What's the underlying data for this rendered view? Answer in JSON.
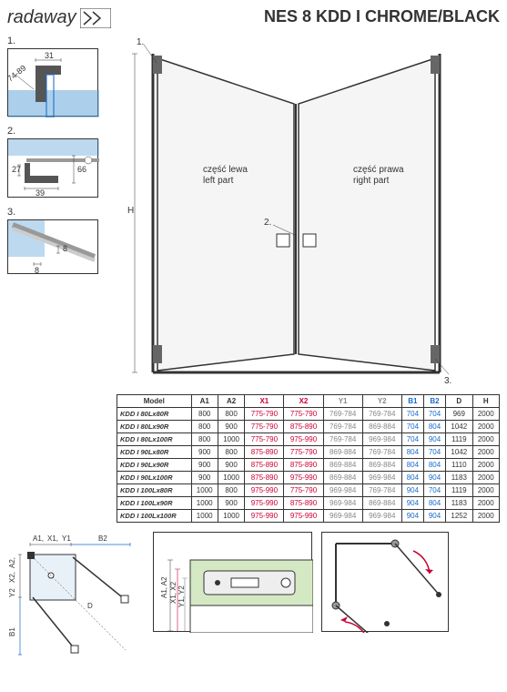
{
  "brand": "radaway",
  "title": "NES 8 KDD I CHROME/BLACK",
  "details": {
    "d1": {
      "label": "1.",
      "dim_top": "31",
      "dim_diag": "74-89"
    },
    "d2": {
      "label": "2.",
      "dim_v": "27",
      "dim_h": "39",
      "dim_r": "66"
    },
    "d3": {
      "label": "3.",
      "dim_h": "8",
      "dim_v": "8"
    }
  },
  "main": {
    "left_label_pl": "część lewa",
    "left_label_en": "left part",
    "right_label_pl": "część prawa",
    "right_label_en": "right part",
    "h_label": "H",
    "callout_1": "1.",
    "callout_2": "2.",
    "callout_3": "3."
  },
  "plan": {
    "labels": [
      "A1,",
      "X1,",
      "Y1",
      "B2",
      "A2,",
      "X2,",
      "Y2",
      "B1",
      "D"
    ],
    "a1_color": "#333",
    "x1_color": "#cc0033",
    "y1_color": "#888",
    "b_color": "#1a6bcc"
  },
  "bottom_detail": {
    "labels_top": [
      "A1, A2",
      "X1, X2",
      "Y1, Y2"
    ]
  },
  "table": {
    "headers": [
      "Model",
      "A1",
      "A2",
      "X1",
      "X2",
      "Y1",
      "Y2",
      "B1",
      "B2",
      "D",
      "H"
    ],
    "header_colors": [
      "#333",
      "#333",
      "#333",
      "#cc0033",
      "#cc0033",
      "#888",
      "#888",
      "#1a6bcc",
      "#1a6bcc",
      "#333",
      "#333"
    ],
    "rows": [
      [
        "KDD I 80Lx80R",
        "800",
        "800",
        "775-790",
        "775-790",
        "769-784",
        "769-784",
        "704",
        "704",
        "969",
        "2000"
      ],
      [
        "KDD I 80Lx90R",
        "800",
        "900",
        "775-790",
        "875-890",
        "769-784",
        "869-884",
        "704",
        "804",
        "1042",
        "2000"
      ],
      [
        "KDD I 80Lx100R",
        "800",
        "1000",
        "775-790",
        "975-990",
        "769-784",
        "969-984",
        "704",
        "904",
        "1119",
        "2000"
      ],
      [
        "KDD I 90Lx80R",
        "900",
        "800",
        "875-890",
        "775-790",
        "869-884",
        "769-784",
        "804",
        "704",
        "1042",
        "2000"
      ],
      [
        "KDD I 90Lx90R",
        "900",
        "900",
        "875-890",
        "875-890",
        "869-884",
        "869-884",
        "804",
        "804",
        "1110",
        "2000"
      ],
      [
        "KDD I 90Lx100R",
        "900",
        "1000",
        "875-890",
        "975-990",
        "869-884",
        "969-984",
        "804",
        "904",
        "1183",
        "2000"
      ],
      [
        "KDD I 100Lx80R",
        "1000",
        "800",
        "975-990",
        "775-790",
        "969-984",
        "769-784",
        "904",
        "704",
        "1119",
        "2000"
      ],
      [
        "KDD I 100Lx90R",
        "1000",
        "900",
        "975-990",
        "875-890",
        "969-984",
        "869-884",
        "904",
        "804",
        "1183",
        "2000"
      ],
      [
        "KDD I 100Lx100R",
        "1000",
        "1000",
        "975-990",
        "975-990",
        "969-984",
        "969-984",
        "904",
        "904",
        "1252",
        "2000"
      ]
    ]
  }
}
